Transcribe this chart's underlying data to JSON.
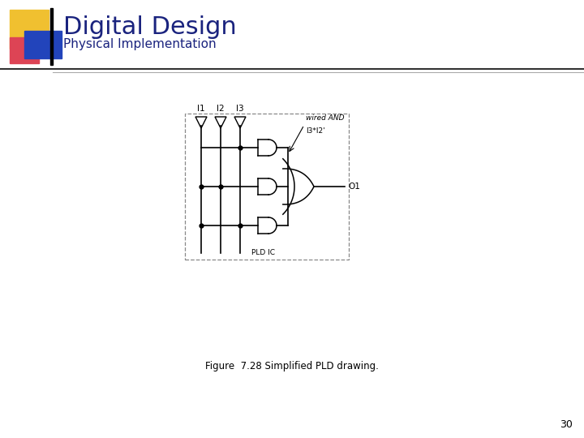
{
  "title": "Digital Design",
  "subtitle": "Physical Implementation",
  "title_color": "#1a237e",
  "subtitle_color": "#1a237e",
  "figure_caption": "Figure  7.28 Simplified PLD drawing.",
  "page_number": "30",
  "bg_color": "#ffffff",
  "diagram": {
    "inputs": [
      "I1",
      "I2",
      "I3"
    ],
    "output": "O1",
    "label_wired_and": "wired AND",
    "label_product": "I3*I2'",
    "label_pld": "PLD IC"
  }
}
